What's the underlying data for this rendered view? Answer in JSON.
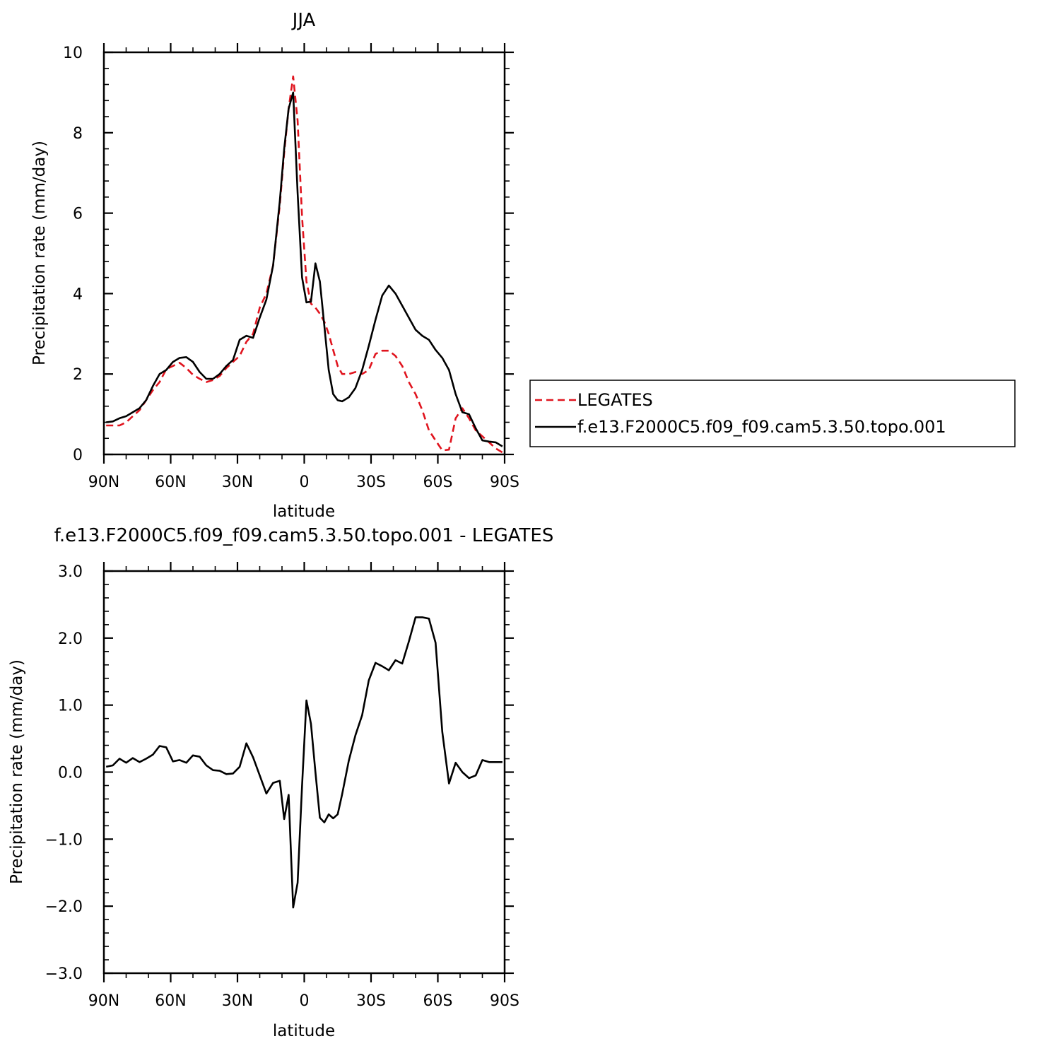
{
  "chart_data": [
    {
      "type": "line",
      "title": "JJA",
      "xlabel": "latitude",
      "ylabel": "Precipitation rate (mm/day)",
      "xlim": [
        90,
        -90
      ],
      "ylim": [
        0,
        10
      ],
      "xticks": [
        90,
        60,
        30,
        0,
        -30,
        -60,
        -90
      ],
      "xtick_labels": [
        "90N",
        "60N",
        "30N",
        "0",
        "30S",
        "60S",
        "90S"
      ],
      "yticks": [
        0,
        2,
        4,
        6,
        8,
        10
      ],
      "ytick_labels": [
        "0",
        "2",
        "4",
        "6",
        "8",
        "10"
      ],
      "legend_position": "right",
      "series": [
        {
          "name": "LEGATES",
          "color": "#e0141e",
          "style": "dashed",
          "x": [
            89,
            86,
            83,
            80,
            77,
            74,
            71,
            68,
            65,
            62,
            59,
            56,
            53,
            50,
            47,
            44,
            41,
            38,
            35,
            32,
            29,
            26,
            23,
            20,
            17,
            14,
            11,
            9,
            7,
            5,
            3,
            1,
            -1,
            -3,
            -5,
            -7,
            -9,
            -11,
            -13,
            -15,
            -17,
            -20,
            -23,
            -26,
            -29,
            -32,
            -35,
            -38,
            -41,
            -44,
            -47,
            -50,
            -53,
            -56,
            -59,
            -62,
            -65,
            -68,
            -71,
            -74,
            -77,
            -80,
            -83,
            -86,
            -89
          ],
          "y": [
            0.72,
            0.72,
            0.72,
            0.8,
            0.95,
            1.1,
            1.35,
            1.6,
            1.8,
            2.12,
            2.2,
            2.28,
            2.15,
            1.98,
            1.88,
            1.8,
            1.85,
            1.95,
            2.15,
            2.3,
            2.45,
            2.8,
            3.0,
            3.65,
            4.0,
            4.7,
            6.2,
            7.5,
            8.6,
            9.4,
            8.3,
            5.9,
            4.3,
            3.75,
            3.65,
            3.5,
            3.3,
            3.0,
            2.6,
            2.2,
            2.0,
            2.0,
            2.05,
            2.0,
            2.1,
            2.5,
            2.58,
            2.58,
            2.45,
            2.2,
            1.8,
            1.5,
            1.1,
            0.6,
            0.35,
            0.1,
            0.12,
            0.9,
            1.15,
            0.9,
            0.6,
            0.45,
            0.3,
            0.15,
            0.05
          ]
        },
        {
          "name": "f.e13.F2000C5.f09_f09.cam5.3.50.topo.001",
          "color": "#000000",
          "style": "solid",
          "x": [
            89,
            86,
            83,
            80,
            77,
            74,
            71,
            68,
            65,
            62,
            59,
            56,
            53,
            50,
            47,
            44,
            41,
            38,
            35,
            32,
            29,
            26,
            23,
            20,
            17,
            14,
            11,
            9,
            7,
            5,
            3,
            1,
            -1,
            -3,
            -5,
            -7,
            -9,
            -11,
            -13,
            -15,
            -17,
            -20,
            -23,
            -26,
            -29,
            -32,
            -35,
            -38,
            -41,
            -44,
            -47,
            -50,
            -53,
            -56,
            -59,
            -62,
            -65,
            -68,
            -71,
            -74,
            -77,
            -80,
            -83,
            -86,
            -89
          ],
          "y": [
            0.8,
            0.82,
            0.9,
            0.95,
            1.05,
            1.15,
            1.35,
            1.7,
            2.0,
            2.1,
            2.3,
            2.4,
            2.42,
            2.3,
            2.05,
            1.88,
            1.88,
            2.0,
            2.2,
            2.35,
            2.85,
            2.95,
            2.9,
            3.4,
            3.85,
            4.7,
            6.3,
            7.6,
            8.6,
            9.0,
            6.5,
            4.4,
            3.78,
            3.8,
            4.75,
            4.3,
            3.2,
            2.1,
            1.5,
            1.35,
            1.32,
            1.42,
            1.65,
            2.1,
            2.7,
            3.35,
            3.95,
            4.2,
            4.0,
            3.7,
            3.4,
            3.1,
            2.95,
            2.85,
            2.6,
            2.4,
            2.1,
            1.5,
            1.05,
            1.0,
            0.65,
            0.35,
            0.32,
            0.3,
            0.2
          ]
        }
      ]
    },
    {
      "type": "line",
      "title": "f.e13.F2000C5.f09_f09.cam5.3.50.topo.001 - LEGATES",
      "xlabel": "latitude",
      "ylabel": "Precipitation rate (mm/day)",
      "xlim": [
        90,
        -90
      ],
      "ylim": [
        -3,
        3
      ],
      "xticks": [
        90,
        60,
        30,
        0,
        -30,
        -60,
        -90
      ],
      "xtick_labels": [
        "90N",
        "60N",
        "30N",
        "0",
        "30S",
        "60S",
        "90S"
      ],
      "yticks": [
        -3,
        -2,
        -1,
        0,
        1,
        2,
        3
      ],
      "ytick_labels": [
        "−3.0",
        "−2.0",
        "−1.0",
        "0.0",
        "1.0",
        "2.0",
        "3.0"
      ],
      "series": [
        {
          "color": "#000000",
          "style": "solid",
          "x": [
            89,
            86,
            83,
            80,
            77,
            74,
            71,
            68,
            65,
            62,
            59,
            56,
            53,
            50,
            47,
            44,
            41,
            38,
            35,
            32,
            29,
            26,
            23,
            20,
            17,
            14,
            11,
            9,
            7,
            5,
            3,
            1,
            -1,
            -3,
            -5,
            -7,
            -9,
            -11,
            -13,
            -15,
            -17,
            -20,
            -23,
            -26,
            -29,
            -32,
            -35,
            -38,
            -41,
            -44,
            -47,
            -50,
            -53,
            -56,
            -59,
            -62,
            -65,
            -68,
            -71,
            -74,
            -77,
            -80,
            -83,
            -86,
            -89
          ],
          "y": [
            0.08,
            0.1,
            0.2,
            0.14,
            0.21,
            0.15,
            0.2,
            0.26,
            0.39,
            0.37,
            0.16,
            0.18,
            0.14,
            0.25,
            0.23,
            0.1,
            0.03,
            0.02,
            -0.03,
            -0.02,
            0.08,
            0.43,
            0.22,
            -0.05,
            -0.32,
            -0.16,
            -0.13,
            -0.7,
            -0.34,
            -2.02,
            -1.65,
            -0.2,
            1.07,
            0.72,
            0.0,
            -0.68,
            -0.75,
            -0.63,
            -0.69,
            -0.63,
            -0.33,
            0.17,
            0.55,
            0.85,
            1.37,
            1.63,
            1.58,
            1.52,
            1.67,
            1.62,
            1.95,
            2.31,
            2.31,
            2.29,
            1.93,
            0.6,
            -0.17,
            0.14,
            0.0,
            -0.09,
            -0.05,
            0.18,
            0.15,
            0.15,
            0.15
          ]
        }
      ]
    }
  ]
}
